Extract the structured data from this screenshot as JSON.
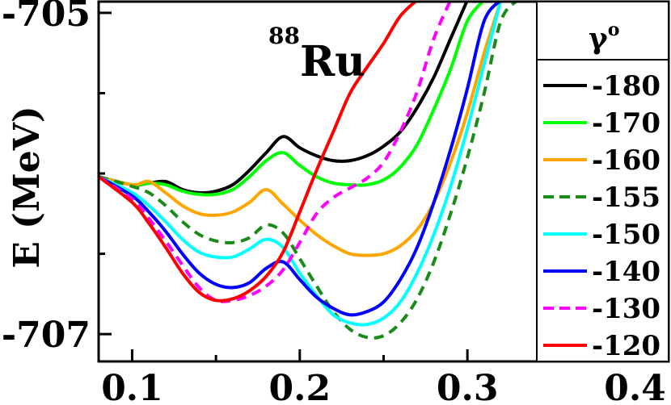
{
  "chart_data": {
    "type": "line",
    "title_mass": "88",
    "title_element": "Ru",
    "xlabel": "",
    "ylabel": "E (MeV)",
    "xlim": [
      0.08,
      0.42
    ],
    "ylim": [
      -707.17,
      -704.93
    ],
    "x_ticks": [
      "0.1",
      "0.2",
      "0.3",
      "0.4"
    ],
    "x_tick_values": [
      0.1,
      0.2,
      0.3,
      0.4
    ],
    "y_ticks": [
      "-705",
      "-707"
    ],
    "y_tick_values": [
      -705,
      -707
    ],
    "legend": {
      "title": "γ",
      "title_sup": "o",
      "position": "right"
    },
    "series": [
      {
        "name": "-180",
        "color": "#000000",
        "dash": "none",
        "points": [
          [
            0.08,
            -706.02
          ],
          [
            0.1,
            -706.07
          ],
          [
            0.11,
            -706.06
          ],
          [
            0.12,
            -706.05
          ],
          [
            0.13,
            -706.1
          ],
          [
            0.14,
            -706.12
          ],
          [
            0.15,
            -706.11
          ],
          [
            0.16,
            -706.07
          ],
          [
            0.17,
            -705.98
          ],
          [
            0.18,
            -705.87
          ],
          [
            0.19,
            -705.77
          ],
          [
            0.2,
            -705.84
          ],
          [
            0.21,
            -705.89
          ],
          [
            0.22,
            -705.92
          ],
          [
            0.23,
            -705.92
          ],
          [
            0.24,
            -705.89
          ],
          [
            0.25,
            -705.83
          ],
          [
            0.26,
            -705.74
          ],
          [
            0.27,
            -705.59
          ],
          [
            0.28,
            -705.4
          ],
          [
            0.29,
            -705.16
          ],
          [
            0.3,
            -704.92
          ]
        ]
      },
      {
        "name": "-170",
        "color": "#00ff00",
        "dash": "none",
        "points": [
          [
            0.08,
            -706.02
          ],
          [
            0.1,
            -706.07
          ],
          [
            0.11,
            -706.06
          ],
          [
            0.12,
            -706.07
          ],
          [
            0.13,
            -706.11
          ],
          [
            0.14,
            -706.13
          ],
          [
            0.15,
            -706.13
          ],
          [
            0.16,
            -706.1
          ],
          [
            0.17,
            -706.02
          ],
          [
            0.18,
            -705.92
          ],
          [
            0.19,
            -705.87
          ],
          [
            0.2,
            -705.95
          ],
          [
            0.21,
            -706.02
          ],
          [
            0.22,
            -706.06
          ],
          [
            0.23,
            -706.07
          ],
          [
            0.24,
            -706.07
          ],
          [
            0.25,
            -706.04
          ],
          [
            0.26,
            -705.96
          ],
          [
            0.27,
            -705.82
          ],
          [
            0.28,
            -705.6
          ],
          [
            0.29,
            -705.35
          ],
          [
            0.3,
            -705.05
          ],
          [
            0.31,
            -704.92
          ]
        ]
      },
      {
        "name": "-160",
        "color": "#ffa500",
        "dash": "none",
        "points": [
          [
            0.08,
            -706.02
          ],
          [
            0.1,
            -706.07
          ],
          [
            0.11,
            -706.05
          ],
          [
            0.12,
            -706.12
          ],
          [
            0.13,
            -706.2
          ],
          [
            0.14,
            -706.25
          ],
          [
            0.15,
            -706.26
          ],
          [
            0.16,
            -706.24
          ],
          [
            0.17,
            -706.18
          ],
          [
            0.18,
            -706.1
          ],
          [
            0.19,
            -706.19
          ],
          [
            0.2,
            -706.29
          ],
          [
            0.21,
            -706.38
          ],
          [
            0.22,
            -706.45
          ],
          [
            0.23,
            -706.5
          ],
          [
            0.24,
            -706.51
          ],
          [
            0.25,
            -706.5
          ],
          [
            0.26,
            -706.45
          ],
          [
            0.27,
            -706.35
          ],
          [
            0.28,
            -706.18
          ],
          [
            0.29,
            -705.93
          ],
          [
            0.3,
            -705.62
          ],
          [
            0.31,
            -705.25
          ],
          [
            0.32,
            -704.92
          ]
        ]
      },
      {
        "name": "-155",
        "color": "#1a8a1a",
        "dash": "12 8",
        "points": [
          [
            0.08,
            -706.02
          ],
          [
            0.1,
            -706.08
          ],
          [
            0.11,
            -706.12
          ],
          [
            0.12,
            -706.2
          ],
          [
            0.13,
            -706.3
          ],
          [
            0.14,
            -706.38
          ],
          [
            0.15,
            -706.42
          ],
          [
            0.16,
            -706.43
          ],
          [
            0.17,
            -706.4
          ],
          [
            0.18,
            -706.32
          ],
          [
            0.19,
            -706.37
          ],
          [
            0.2,
            -706.53
          ],
          [
            0.21,
            -706.7
          ],
          [
            0.22,
            -706.86
          ],
          [
            0.23,
            -706.97
          ],
          [
            0.24,
            -707.02
          ],
          [
            0.25,
            -707.01
          ],
          [
            0.26,
            -706.93
          ],
          [
            0.27,
            -706.78
          ],
          [
            0.28,
            -706.55
          ],
          [
            0.29,
            -706.25
          ],
          [
            0.3,
            -705.9
          ],
          [
            0.31,
            -705.5
          ],
          [
            0.32,
            -705.05
          ],
          [
            0.33,
            -704.92
          ]
        ]
      },
      {
        "name": "-150",
        "color": "#00ffff",
        "dash": "none",
        "points": [
          [
            0.08,
            -706.02
          ],
          [
            0.1,
            -706.12
          ],
          [
            0.11,
            -706.2
          ],
          [
            0.12,
            -706.3
          ],
          [
            0.13,
            -706.41
          ],
          [
            0.14,
            -706.49
          ],
          [
            0.15,
            -706.52
          ],
          [
            0.16,
            -706.52
          ],
          [
            0.17,
            -706.47
          ],
          [
            0.18,
            -706.41
          ],
          [
            0.19,
            -706.46
          ],
          [
            0.2,
            -706.62
          ],
          [
            0.21,
            -706.76
          ],
          [
            0.22,
            -706.88
          ],
          [
            0.23,
            -706.93
          ],
          [
            0.24,
            -706.94
          ],
          [
            0.25,
            -706.9
          ],
          [
            0.26,
            -706.8
          ],
          [
            0.27,
            -706.62
          ],
          [
            0.28,
            -706.38
          ],
          [
            0.29,
            -706.08
          ],
          [
            0.3,
            -705.72
          ],
          [
            0.31,
            -705.32
          ],
          [
            0.32,
            -704.92
          ]
        ]
      },
      {
        "name": "-140",
        "color": "#0000ff",
        "dash": "none",
        "points": [
          [
            0.08,
            -706.02
          ],
          [
            0.1,
            -706.14
          ],
          [
            0.11,
            -706.24
          ],
          [
            0.12,
            -706.36
          ],
          [
            0.13,
            -706.5
          ],
          [
            0.14,
            -706.62
          ],
          [
            0.15,
            -706.69
          ],
          [
            0.16,
            -706.71
          ],
          [
            0.17,
            -706.68
          ],
          [
            0.18,
            -706.59
          ],
          [
            0.19,
            -706.55
          ],
          [
            0.2,
            -706.66
          ],
          [
            0.21,
            -706.77
          ],
          [
            0.22,
            -706.84
          ],
          [
            0.23,
            -706.88
          ],
          [
            0.24,
            -706.86
          ],
          [
            0.25,
            -706.8
          ],
          [
            0.26,
            -706.66
          ],
          [
            0.27,
            -706.46
          ],
          [
            0.28,
            -706.18
          ],
          [
            0.29,
            -705.85
          ],
          [
            0.3,
            -705.47
          ],
          [
            0.31,
            -705.05
          ],
          [
            0.32,
            -704.92
          ]
        ]
      },
      {
        "name": "-130",
        "color": "#ff00ff",
        "dash": "12 8",
        "points": [
          [
            0.08,
            -706.02
          ],
          [
            0.1,
            -706.16
          ],
          [
            0.11,
            -706.28
          ],
          [
            0.12,
            -706.42
          ],
          [
            0.13,
            -706.57
          ],
          [
            0.14,
            -706.71
          ],
          [
            0.15,
            -706.79
          ],
          [
            0.16,
            -706.79
          ],
          [
            0.17,
            -706.76
          ],
          [
            0.18,
            -706.7
          ],
          [
            0.19,
            -706.6
          ],
          [
            0.2,
            -706.43
          ],
          [
            0.21,
            -706.25
          ],
          [
            0.22,
            -706.15
          ],
          [
            0.23,
            -706.09
          ],
          [
            0.24,
            -706.03
          ],
          [
            0.25,
            -705.93
          ],
          [
            0.26,
            -705.74
          ],
          [
            0.27,
            -705.49
          ],
          [
            0.28,
            -705.16
          ],
          [
            0.29,
            -704.92
          ]
        ]
      },
      {
        "name": "-120",
        "color": "#ff0000",
        "dash": "none",
        "points": [
          [
            0.08,
            -706.02
          ],
          [
            0.1,
            -706.18
          ],
          [
            0.11,
            -706.31
          ],
          [
            0.12,
            -706.46
          ],
          [
            0.13,
            -706.62
          ],
          [
            0.14,
            -706.74
          ],
          [
            0.15,
            -706.79
          ],
          [
            0.16,
            -706.78
          ],
          [
            0.17,
            -706.73
          ],
          [
            0.18,
            -706.64
          ],
          [
            0.19,
            -706.49
          ],
          [
            0.2,
            -706.24
          ],
          [
            0.21,
            -705.98
          ],
          [
            0.22,
            -705.74
          ],
          [
            0.23,
            -705.5
          ],
          [
            0.24,
            -705.34
          ],
          [
            0.25,
            -705.19
          ],
          [
            0.26,
            -705.02
          ],
          [
            0.27,
            -704.92
          ]
        ]
      }
    ]
  }
}
